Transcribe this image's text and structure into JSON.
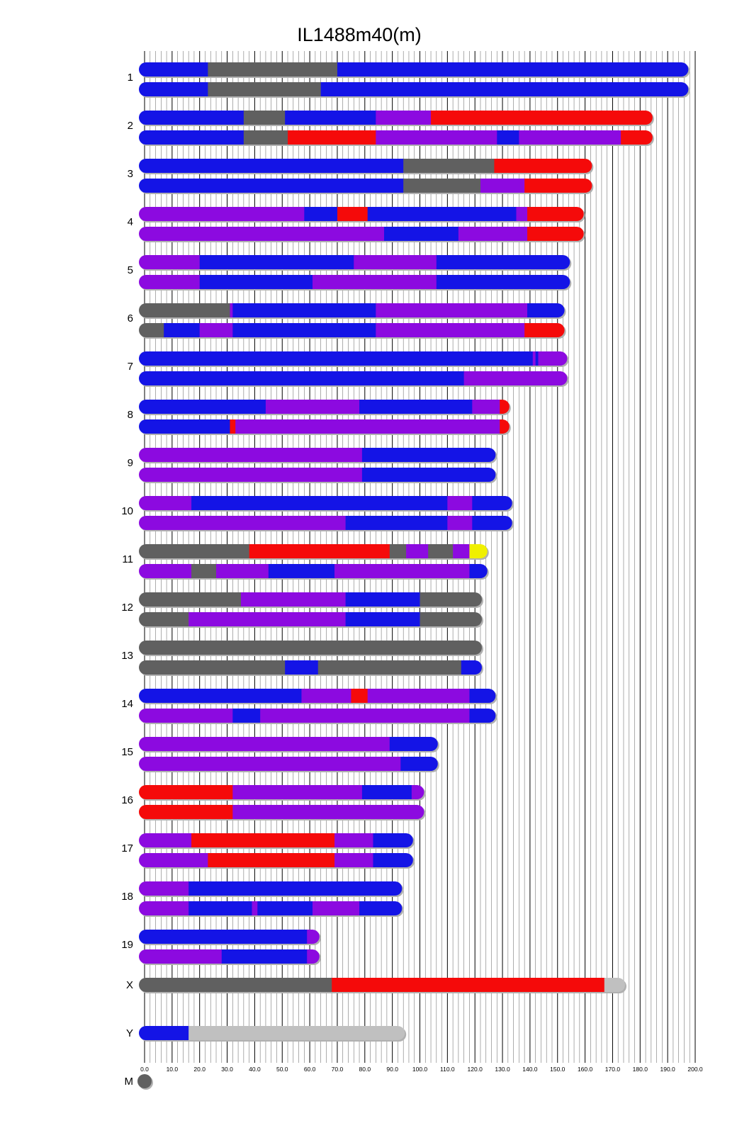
{
  "chart_data": {
    "type": "chromosome-haplotype-map",
    "title": "IL1488m40(m)",
    "xlim": [
      0,
      200
    ],
    "x_ticks": [
      "0.0",
      "10.0",
      "20.0",
      "30.0",
      "40.0",
      "50.0",
      "60.0",
      "70.0",
      "80.0",
      "90.0",
      "100.0",
      "110.0",
      "120.0",
      "130.0",
      "140.0",
      "150.0",
      "160.0",
      "170.0",
      "180.0",
      "190.0",
      "200.0"
    ],
    "grid": "vertical",
    "colors": {
      "blue": "#1414e6",
      "purple": "#8c0ae0",
      "red": "#f50a0a",
      "gray": "#606060",
      "lightgray": "#c0c0c0",
      "yellow": "#f0f000"
    },
    "chromosomes": [
      {
        "label": "1",
        "length": 197,
        "haplotypes": [
          [
            [
              0,
              23,
              "blue"
            ],
            [
              23,
              70,
              "gray"
            ],
            [
              70,
              197,
              "blue"
            ]
          ],
          [
            [
              0,
              23,
              "blue"
            ],
            [
              23,
              64,
              "gray"
            ],
            [
              64,
              197,
              "blue"
            ]
          ]
        ]
      },
      {
        "label": "2",
        "length": 184,
        "haplotypes": [
          [
            [
              0,
              36,
              "blue"
            ],
            [
              36,
              51,
              "gray"
            ],
            [
              51,
              84,
              "blue"
            ],
            [
              84,
              104,
              "purple"
            ],
            [
              104,
              184,
              "red"
            ]
          ],
          [
            [
              0,
              36,
              "blue"
            ],
            [
              36,
              52,
              "gray"
            ],
            [
              52,
              84,
              "red"
            ],
            [
              84,
              128,
              "purple"
            ],
            [
              128,
              136,
              "blue"
            ],
            [
              136,
              173,
              "purple"
            ],
            [
              173,
              184,
              "red"
            ]
          ]
        ]
      },
      {
        "label": "3",
        "length": 162,
        "haplotypes": [
          [
            [
              0,
              94,
              "blue"
            ],
            [
              94,
              127,
              "gray"
            ],
            [
              127,
              162,
              "red"
            ]
          ],
          [
            [
              0,
              94,
              "blue"
            ],
            [
              94,
              122,
              "gray"
            ],
            [
              122,
              138,
              "purple"
            ],
            [
              138,
              162,
              "red"
            ]
          ]
        ]
      },
      {
        "label": "4",
        "length": 159,
        "haplotypes": [
          [
            [
              0,
              58,
              "purple"
            ],
            [
              58,
              70,
              "blue"
            ],
            [
              70,
              81,
              "red"
            ],
            [
              81,
              135,
              "blue"
            ],
            [
              135,
              139,
              "purple"
            ],
            [
              139,
              159,
              "red"
            ]
          ],
          [
            [
              0,
              87,
              "purple"
            ],
            [
              87,
              114,
              "blue"
            ],
            [
              114,
              139,
              "purple"
            ],
            [
              139,
              159,
              "red"
            ]
          ]
        ]
      },
      {
        "label": "5",
        "length": 154,
        "haplotypes": [
          [
            [
              0,
              20,
              "purple"
            ],
            [
              20,
              76,
              "blue"
            ],
            [
              76,
              106,
              "purple"
            ],
            [
              106,
              154,
              "blue"
            ]
          ],
          [
            [
              0,
              20,
              "purple"
            ],
            [
              20,
              61,
              "blue"
            ],
            [
              61,
              106,
              "purple"
            ],
            [
              106,
              154,
              "blue"
            ]
          ]
        ]
      },
      {
        "label": "6",
        "length": 152,
        "haplotypes": [
          [
            [
              0,
              31,
              "gray"
            ],
            [
              31,
              32,
              "purple"
            ],
            [
              32,
              84,
              "blue"
            ],
            [
              84,
              139,
              "purple"
            ],
            [
              139,
              152,
              "blue"
            ]
          ],
          [
            [
              0,
              7,
              "gray"
            ],
            [
              7,
              20,
              "blue"
            ],
            [
              20,
              32,
              "purple"
            ],
            [
              32,
              84,
              "blue"
            ],
            [
              84,
              138,
              "purple"
            ],
            [
              138,
              152,
              "red"
            ]
          ]
        ]
      },
      {
        "label": "7",
        "length": 153,
        "haplotypes": [
          [
            [
              0,
              141,
              "blue"
            ],
            [
              141,
              142,
              "purple"
            ],
            [
              142,
              143,
              "blue"
            ],
            [
              143,
              153,
              "purple"
            ]
          ],
          [
            [
              0,
              116,
              "blue"
            ],
            [
              116,
              153,
              "purple"
            ]
          ]
        ]
      },
      {
        "label": "8",
        "length": 132,
        "haplotypes": [
          [
            [
              0,
              44,
              "blue"
            ],
            [
              44,
              78,
              "purple"
            ],
            [
              78,
              119,
              "blue"
            ],
            [
              119,
              129,
              "purple"
            ],
            [
              129,
              132,
              "red"
            ]
          ],
          [
            [
              0,
              31,
              "blue"
            ],
            [
              31,
              33,
              "red"
            ],
            [
              33,
              129,
              "purple"
            ],
            [
              129,
              132,
              "red"
            ]
          ]
        ]
      },
      {
        "label": "9",
        "length": 127,
        "haplotypes": [
          [
            [
              0,
              79,
              "purple"
            ],
            [
              79,
              127,
              "blue"
            ]
          ],
          [
            [
              0,
              79,
              "purple"
            ],
            [
              79,
              127,
              "blue"
            ]
          ]
        ]
      },
      {
        "label": "10",
        "length": 133,
        "haplotypes": [
          [
            [
              0,
              17,
              "purple"
            ],
            [
              17,
              110,
              "blue"
            ],
            [
              110,
              119,
              "purple"
            ],
            [
              119,
              133,
              "blue"
            ]
          ],
          [
            [
              0,
              73,
              "purple"
            ],
            [
              73,
              110,
              "blue"
            ],
            [
              110,
              119,
              "purple"
            ],
            [
              119,
              133,
              "blue"
            ]
          ]
        ]
      },
      {
        "label": "11",
        "length": 124,
        "haplotypes": [
          [
            [
              0,
              38,
              "gray"
            ],
            [
              38,
              89,
              "red"
            ],
            [
              89,
              95,
              "gray"
            ],
            [
              95,
              103,
              "purple"
            ],
            [
              103,
              112,
              "gray"
            ],
            [
              112,
              118,
              "purple"
            ],
            [
              118,
              124,
              "yellow"
            ]
          ],
          [
            [
              0,
              17,
              "purple"
            ],
            [
              17,
              26,
              "gray"
            ],
            [
              26,
              45,
              "purple"
            ],
            [
              45,
              69,
              "blue"
            ],
            [
              69,
              118,
              "purple"
            ],
            [
              118,
              124,
              "blue"
            ]
          ]
        ]
      },
      {
        "label": "12",
        "length": 122,
        "haplotypes": [
          [
            [
              0,
              35,
              "gray"
            ],
            [
              35,
              73,
              "purple"
            ],
            [
              73,
              100,
              "blue"
            ],
            [
              100,
              122,
              "gray"
            ]
          ],
          [
            [
              0,
              16,
              "gray"
            ],
            [
              16,
              73,
              "purple"
            ],
            [
              73,
              100,
              "blue"
            ],
            [
              100,
              122,
              "gray"
            ]
          ]
        ]
      },
      {
        "label": "13",
        "length": 122,
        "haplotypes": [
          [
            [
              0,
              122,
              "gray"
            ]
          ],
          [
            [
              0,
              51,
              "gray"
            ],
            [
              51,
              63,
              "blue"
            ],
            [
              63,
              115,
              "gray"
            ],
            [
              115,
              122,
              "blue"
            ]
          ]
        ]
      },
      {
        "label": "14",
        "length": 127,
        "haplotypes": [
          [
            [
              0,
              57,
              "blue"
            ],
            [
              57,
              75,
              "purple"
            ],
            [
              75,
              81,
              "red"
            ],
            [
              81,
              118,
              "purple"
            ],
            [
              118,
              127,
              "blue"
            ]
          ],
          [
            [
              0,
              32,
              "purple"
            ],
            [
              32,
              42,
              "blue"
            ],
            [
              42,
              118,
              "purple"
            ],
            [
              118,
              127,
              "blue"
            ]
          ]
        ]
      },
      {
        "label": "15",
        "length": 106,
        "haplotypes": [
          [
            [
              0,
              89,
              "purple"
            ],
            [
              89,
              106,
              "blue"
            ]
          ],
          [
            [
              0,
              93,
              "purple"
            ],
            [
              93,
              106,
              "blue"
            ]
          ]
        ]
      },
      {
        "label": "16",
        "length": 101,
        "haplotypes": [
          [
            [
              0,
              32,
              "red"
            ],
            [
              32,
              79,
              "purple"
            ],
            [
              79,
              97,
              "blue"
            ],
            [
              97,
              101,
              "purple"
            ]
          ],
          [
            [
              0,
              32,
              "red"
            ],
            [
              32,
              101,
              "purple"
            ]
          ]
        ]
      },
      {
        "label": "17",
        "length": 97,
        "haplotypes": [
          [
            [
              0,
              17,
              "purple"
            ],
            [
              17,
              69,
              "red"
            ],
            [
              69,
              83,
              "purple"
            ],
            [
              83,
              97,
              "blue"
            ]
          ],
          [
            [
              0,
              23,
              "purple"
            ],
            [
              23,
              69,
              "red"
            ],
            [
              69,
              83,
              "purple"
            ],
            [
              83,
              97,
              "blue"
            ]
          ]
        ]
      },
      {
        "label": "18",
        "length": 93,
        "haplotypes": [
          [
            [
              0,
              16,
              "purple"
            ],
            [
              16,
              93,
              "blue"
            ]
          ],
          [
            [
              0,
              16,
              "purple"
            ],
            [
              16,
              39,
              "blue"
            ],
            [
              39,
              41,
              "purple"
            ],
            [
              41,
              61,
              "blue"
            ],
            [
              61,
              78,
              "purple"
            ],
            [
              78,
              93,
              "blue"
            ]
          ]
        ]
      },
      {
        "label": "19",
        "length": 63,
        "haplotypes": [
          [
            [
              0,
              59,
              "blue"
            ],
            [
              59,
              63,
              "purple"
            ]
          ],
          [
            [
              0,
              28,
              "purple"
            ],
            [
              28,
              59,
              "blue"
            ],
            [
              59,
              63,
              "purple"
            ]
          ]
        ]
      },
      {
        "label": "X",
        "length": 174,
        "haplotypes": [
          [
            [
              0,
              68,
              "gray"
            ],
            [
              68,
              167,
              "red"
            ],
            [
              167,
              174,
              "lightgray"
            ]
          ]
        ]
      },
      {
        "label": "Y",
        "length": 94,
        "haplotypes": [
          [
            [
              0,
              16,
              "blue"
            ],
            [
              16,
              94,
              "lightgray"
            ]
          ]
        ]
      },
      {
        "label": "M",
        "length": 0,
        "haplotypes": [
          [
            [
              0,
              0,
              "gray"
            ]
          ]
        ]
      }
    ]
  }
}
